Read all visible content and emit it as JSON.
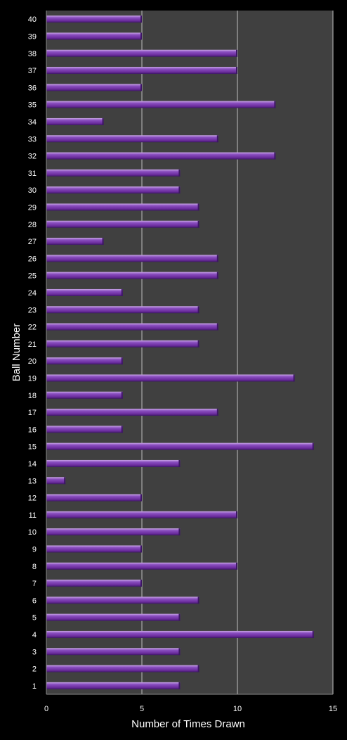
{
  "chart_data": {
    "type": "bar",
    "orientation": "horizontal",
    "categories": [
      "1",
      "2",
      "3",
      "4",
      "5",
      "6",
      "7",
      "8",
      "9",
      "10",
      "11",
      "12",
      "13",
      "14",
      "15",
      "16",
      "17",
      "18",
      "19",
      "20",
      "21",
      "22",
      "23",
      "24",
      "25",
      "26",
      "27",
      "28",
      "29",
      "30",
      "31",
      "32",
      "33",
      "34",
      "35",
      "36",
      "37",
      "38",
      "39",
      "40"
    ],
    "values": [
      7,
      8,
      7,
      14,
      7,
      8,
      5,
      10,
      5,
      7,
      10,
      5,
      1,
      7,
      14,
      4,
      9,
      4,
      13,
      4,
      8,
      9,
      8,
      4,
      9,
      9,
      3,
      8,
      8,
      7,
      7,
      12,
      9,
      3,
      12,
      5,
      10,
      10,
      5,
      5
    ],
    "xlabel": "Number of Times Drawn",
    "ylabel": "Ball Number",
    "xlim": [
      0,
      15
    ],
    "xticks": [
      0,
      5,
      10,
      15
    ],
    "grid": "vertical major gridlines",
    "legend": "none"
  },
  "colors": {
    "background": "#000000",
    "plot_area": "#404040",
    "gridline": "#bfbfbf",
    "bar": "#7030a0",
    "bar_highlight": "#b58ad6",
    "bar_shadow": "#3c1763",
    "text": "#ffffff"
  }
}
